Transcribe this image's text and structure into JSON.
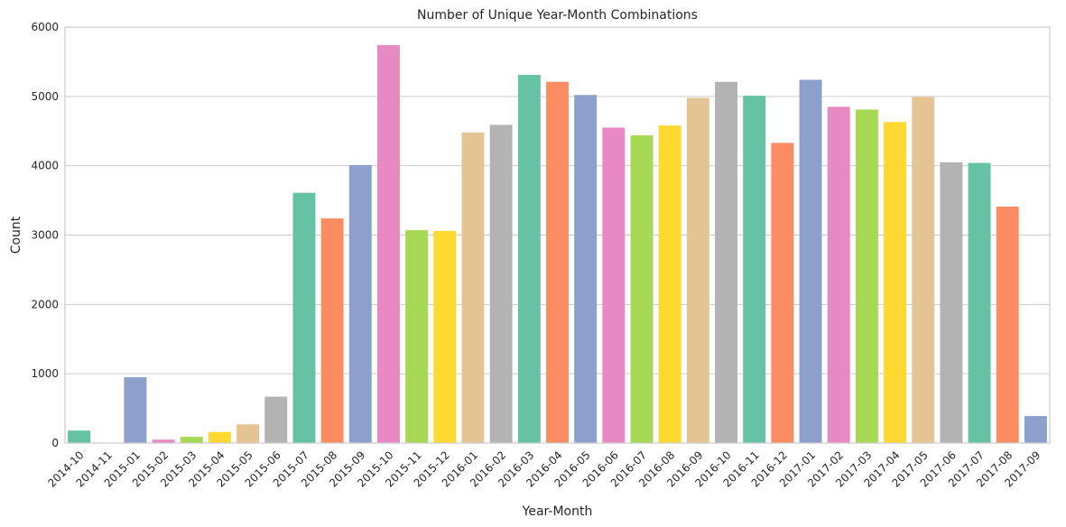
{
  "chart_data": {
    "type": "bar",
    "title": "Number of Unique Year-Month Combinations",
    "xlabel": "Year-Month",
    "ylabel": "Count",
    "ylim": [
      0,
      6000
    ],
    "yticks": [
      0,
      1000,
      2000,
      3000,
      4000,
      5000,
      6000
    ],
    "grid": "horizontal",
    "categories": [
      "2014-10",
      "2014-11",
      "2015-01",
      "2015-02",
      "2015-03",
      "2015-04",
      "2015-05",
      "2015-06",
      "2015-07",
      "2015-08",
      "2015-09",
      "2015-10",
      "2015-11",
      "2015-12",
      "2016-01",
      "2016-02",
      "2016-03",
      "2016-04",
      "2016-05",
      "2016-06",
      "2016-07",
      "2016-08",
      "2016-09",
      "2016-10",
      "2016-11",
      "2016-12",
      "2017-01",
      "2017-02",
      "2017-03",
      "2017-04",
      "2017-05",
      "2017-06",
      "2017-07",
      "2017-08",
      "2017-09"
    ],
    "values": [
      180,
      2,
      950,
      50,
      90,
      160,
      270,
      670,
      3610,
      3240,
      4010,
      5740,
      3070,
      3060,
      4480,
      4590,
      5310,
      5210,
      5020,
      4550,
      4440,
      4580,
      4980,
      5210,
      5010,
      4330,
      5240,
      4850,
      4810,
      4630,
      4990,
      4050,
      4040,
      3410,
      390
    ],
    "palette": [
      "#66c2a5",
      "#fc8d62",
      "#8da0cb",
      "#e78ac3",
      "#a6d854",
      "#ffd92f",
      "#e5c494",
      "#b3b3b3"
    ]
  }
}
